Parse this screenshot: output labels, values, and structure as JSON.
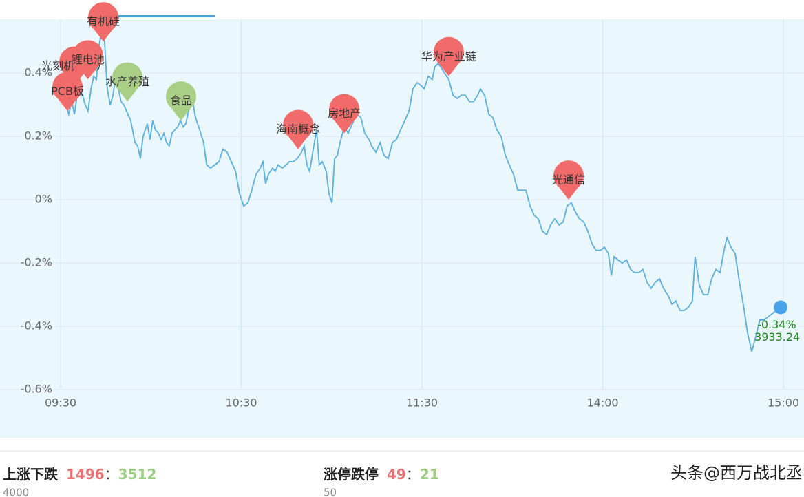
{
  "chart_data": {
    "type": "line",
    "x": [
      0,
      0.9,
      1.8,
      2.7,
      3.7,
      4.6,
      5.5,
      6.4,
      7.3,
      8.2,
      9.1,
      10.1,
      11.0,
      11.9,
      12.8,
      13.7,
      14.6,
      15.5,
      16.5,
      17.4,
      18.3,
      19.2,
      20.1,
      21.0,
      21.9,
      23.3,
      24.7,
      25.6,
      26.5,
      27.4,
      28.8,
      29.7,
      30.6,
      31.5,
      32.5,
      33.4,
      34.3,
      35.2,
      36.1,
      37.0,
      37.9,
      38.9,
      39.8,
      40.7,
      41.6,
      42.5,
      43.9,
      44.8,
      46.2,
      47.5,
      48.5,
      49.8,
      51.2,
      52.6,
      53.9,
      55.3,
      56.7,
      58.1,
      59.4,
      60.8,
      62.2,
      63.5,
      64.9,
      66.3,
      67.2,
      68.1,
      69.0,
      70.4,
      71.3,
      72.2,
      73.6,
      75.0,
      75.9,
      77.3,
      78.6,
      80.0,
      80.9,
      81.8,
      82.7,
      84.1,
      85.0,
      85.9,
      86.9,
      88.2,
      89.1,
      90.1,
      91.0,
      91.9,
      92.8,
      94.2,
      95.5,
      96.9,
      98.3,
      99.7,
      101.0,
      102.4,
      103.3,
      104.7,
      106.1,
      107.4,
      108.8,
      110.2,
      111.5,
      112.9,
      114.3,
      115.7,
      117.0,
      118.4,
      119.8,
      120.7,
      122.1,
      123.4,
      124.3,
      125.3,
      126.2,
      127.5,
      128.9,
      130.3,
      131.7,
      133.0,
      134.4,
      135.8,
      137.1,
      138.5,
      139.4,
      140.8,
      142.2,
      143.5,
      144.9,
      146.3,
      147.7,
      149.0,
      150.4,
      151.8,
      153.1,
      154.5,
      155.9,
      157.3,
      158.6,
      160.0,
      161.4,
      162.7,
      164.1,
      165.5,
      166.9,
      168.2,
      169.6,
      171.0,
      172.3,
      173.7,
      175.1,
      176.5,
      177.8,
      179.2,
      180.6,
      181.9,
      182.9,
      183.8,
      185.1,
      186.5,
      187.9,
      189.3,
      190.6,
      192.0,
      193.4,
      194.7,
      196.1,
      197.5,
      198.9,
      200.2,
      201.6,
      203.0,
      204.3,
      205.7,
      207.1,
      208.5,
      209.8,
      210.7,
      212.1,
      213.5,
      214.9,
      216.2,
      217.6,
      219.0,
      220.3,
      221.3,
      222.6,
      224.0,
      225.4,
      226.7,
      228.1,
      229.5,
      230.9,
      232.2,
      233.6,
      235.0,
      236.3,
      237.7,
      239.1
    ],
    "series": [
      {
        "color": "#5aaedb",
        "values": [
          0.32,
          0.33,
          0.3,
          0.27,
          0.31,
          0.27,
          0.33,
          0.35,
          0.33,
          0.3,
          0.28,
          0.35,
          0.39,
          0.38,
          0.49,
          0.53,
          0.5,
          0.35,
          0.3,
          0.33,
          0.39,
          0.35,
          0.31,
          0.3,
          0.28,
          0.25,
          0.18,
          0.17,
          0.13,
          0.2,
          0.24,
          0.19,
          0.25,
          0.22,
          0.21,
          0.19,
          0.21,
          0.18,
          0.17,
          0.21,
          0.22,
          0.23,
          0.25,
          0.23,
          0.24,
          0.28,
          0.31,
          0.26,
          0.22,
          0.18,
          0.11,
          0.1,
          0.11,
          0.12,
          0.16,
          0.15,
          0.12,
          0.09,
          0.02,
          -0.02,
          -0.01,
          0.03,
          0.08,
          0.1,
          0.12,
          0.05,
          0.08,
          0.1,
          0.09,
          0.11,
          0.1,
          0.11,
          0.12,
          0.12,
          0.13,
          0.15,
          0.17,
          0.11,
          0.09,
          0.17,
          0.22,
          0.11,
          0.12,
          0.09,
          0.02,
          -0.01,
          0.13,
          0.14,
          0.18,
          0.23,
          0.21,
          0.24,
          0.27,
          0.26,
          0.21,
          0.19,
          0.17,
          0.15,
          0.18,
          0.14,
          0.13,
          0.18,
          0.19,
          0.22,
          0.25,
          0.28,
          0.35,
          0.37,
          0.36,
          0.35,
          0.39,
          0.38,
          0.42,
          0.43,
          0.42,
          0.4,
          0.38,
          0.33,
          0.32,
          0.33,
          0.33,
          0.31,
          0.31,
          0.33,
          0.35,
          0.33,
          0.27,
          0.26,
          0.22,
          0.2,
          0.14,
          0.11,
          0.08,
          0.03,
          0.03,
          0.03,
          -0.02,
          -0.05,
          -0.06,
          -0.1,
          -0.11,
          -0.08,
          -0.06,
          -0.08,
          -0.07,
          -0.02,
          -0.01,
          -0.04,
          -0.06,
          -0.07,
          -0.1,
          -0.14,
          -0.16,
          -0.16,
          -0.15,
          -0.17,
          -0.24,
          -0.18,
          -0.19,
          -0.2,
          -0.19,
          -0.22,
          -0.23,
          -0.23,
          -0.22,
          -0.26,
          -0.28,
          -0.26,
          -0.25,
          -0.28,
          -0.3,
          -0.33,
          -0.32,
          -0.35,
          -0.35,
          -0.34,
          -0.32,
          -0.18,
          -0.27,
          -0.3,
          -0.3,
          -0.25,
          -0.22,
          -0.23,
          -0.16,
          -0.12,
          -0.15,
          -0.17,
          -0.26,
          -0.33,
          -0.42,
          -0.48,
          -0.43,
          -0.38,
          -0.38,
          -0.37,
          -0.36,
          -0.35,
          -0.34
        ]
      }
    ],
    "xlim": [
      0,
      240
    ],
    "xticks": [
      {
        "value": 0,
        "label": "09:30"
      },
      {
        "value": 60,
        "label": "10:30"
      },
      {
        "value": 120,
        "label": "11:30"
      },
      {
        "value": 180,
        "label": "14:00"
      },
      {
        "value": 240,
        "label": "15:00"
      }
    ],
    "ylim": [
      -0.6,
      0.57
    ],
    "yticks": [
      {
        "value": -0.6,
        "label": "-0.6%"
      },
      {
        "value": -0.4,
        "label": "-0.4%"
      },
      {
        "value": -0.2,
        "label": "-0.2%"
      },
      {
        "value": 0,
        "label": "0%"
      },
      {
        "value": 0.2,
        "label": "0.2%"
      },
      {
        "value": 0.4,
        "label": "0.4%"
      }
    ],
    "grid": true,
    "last_label": {
      "change": "-0.34%",
      "index": "3933.24",
      "color": "#1a8a1a"
    },
    "pins": [
      {
        "label": "PCB板",
        "x": 2.3,
        "value": 0.28,
        "color": "#f26b6b"
      },
      {
        "label": "光刻机（胶）",
        "x": 4.6,
        "value": 0.36,
        "color": "#f26b6b"
      },
      {
        "label": "锂电池",
        "x": 9.1,
        "value": 0.38,
        "color": "#f26b6b"
      },
      {
        "label": "有机硅",
        "x": 14.2,
        "value": 0.5,
        "color": "#f26b6b"
      },
      {
        "label": "水产养殖",
        "x": 22.2,
        "value": 0.31,
        "color": "#a9cf86"
      },
      {
        "label": "食品",
        "x": 40.0,
        "value": 0.25,
        "color": "#a9cf86"
      },
      {
        "label": "海南概念",
        "x": 78.9,
        "value": 0.16,
        "color": "#f26b6b"
      },
      {
        "label": "房地产",
        "x": 94.2,
        "value": 0.21,
        "color": "#f26b6b"
      },
      {
        "label": "华为产业链",
        "x": 128.9,
        "value": 0.39,
        "color": "#f26b6b"
      },
      {
        "label": "光通信",
        "x": 168.7,
        "value": 0.0,
        "color": "#f26b6b"
      }
    ]
  },
  "stats": [
    {
      "label": "上涨下跌",
      "up": "1496",
      "sep": "：",
      "down": "3512",
      "sub": "4000"
    },
    {
      "label": "涨停跌停",
      "up": "49",
      "sep": "：",
      "down": "21",
      "sub": "50"
    }
  ],
  "watermark": "头条@西万战北丞"
}
